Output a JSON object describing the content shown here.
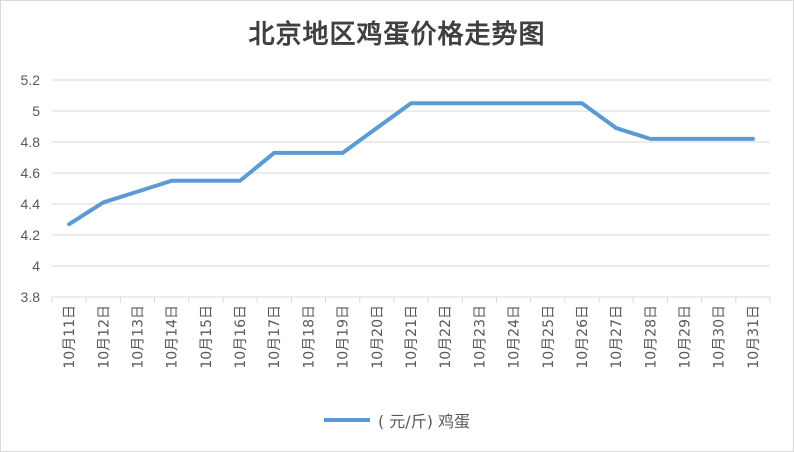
{
  "chart_data": {
    "type": "line",
    "title": "北京地区鸡蛋价格走势图",
    "categories": [
      "10月11日",
      "10月12日",
      "10月13日",
      "10月14日",
      "10月15日",
      "10月16日",
      "10月17日",
      "10月18日",
      "10月19日",
      "10月20日",
      "10月21日",
      "10月22日",
      "10月23日",
      "10月24日",
      "10月25日",
      "10月26日",
      "10月27日",
      "10月28日",
      "10月29日",
      "10月30日",
      "10月31日"
    ],
    "series": [
      {
        "name": "( 元/斤) 鸡蛋",
        "values": [
          4.27,
          4.41,
          4.48,
          4.55,
          4.55,
          4.55,
          4.73,
          4.73,
          4.73,
          4.89,
          5.05,
          5.05,
          5.05,
          5.05,
          5.05,
          5.05,
          4.89,
          4.82,
          4.82,
          4.82,
          4.82
        ]
      }
    ],
    "ylim": [
      3.8,
      5.2
    ],
    "yticks": [
      "3.8",
      "4",
      "4.2",
      "4.4",
      "4.6",
      "4.8",
      "5",
      "5.2"
    ],
    "grid": true,
    "legend": "bottom",
    "colors": {
      "line": "#5b9bd5",
      "grid": "#d9d9d9",
      "axis_text": "#595959"
    }
  }
}
